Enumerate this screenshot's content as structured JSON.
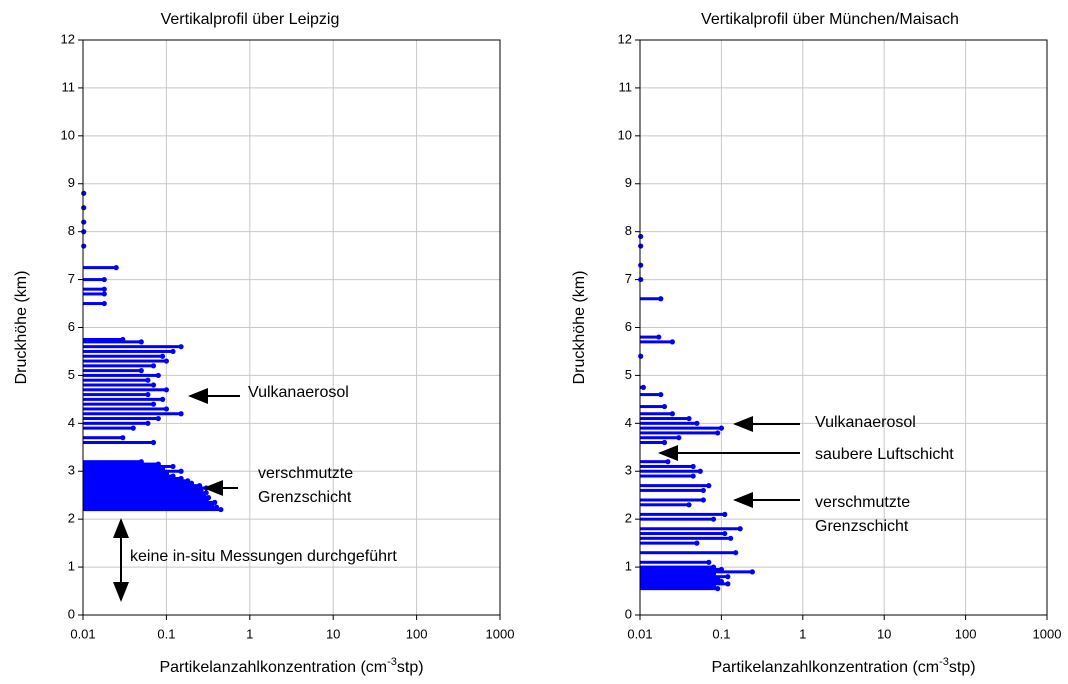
{
  "chart_data": [
    {
      "type": "hbar",
      "title": "Vertikalprofil über Leipzig",
      "xlabel": [
        "Partikelanzahlkonzentration (cm",
        "-3",
        "stp)"
      ],
      "ylabel": "Druckhöhe (km)",
      "xscale": "log",
      "xlim": [
        0.01,
        1000
      ],
      "xticks": [
        0.01,
        0.1,
        1,
        10,
        100,
        1000
      ],
      "ylim": [
        0,
        12
      ],
      "yticks": [
        0,
        1,
        2,
        3,
        4,
        5,
        6,
        7,
        8,
        9,
        10,
        11,
        12
      ],
      "grid": true,
      "color": "#0000ff",
      "altitude": [
        2.2,
        2.25,
        2.3,
        2.35,
        2.4,
        2.45,
        2.5,
        2.55,
        2.6,
        2.65,
        2.7,
        2.75,
        2.8,
        2.85,
        2.9,
        2.95,
        3.0,
        3.05,
        3.1,
        3.15,
        3.2,
        3.6,
        3.7,
        3.9,
        4.0,
        4.1,
        4.2,
        4.3,
        4.4,
        4.5,
        4.6,
        4.7,
        4.8,
        4.9,
        5.0,
        5.1,
        5.2,
        5.3,
        5.4,
        5.5,
        5.6,
        5.7,
        5.75,
        6.5,
        6.7,
        6.8,
        7.0,
        7.25,
        7.7,
        8.0,
        8.2,
        8.5,
        8.8
      ],
      "values": [
        0.45,
        0.4,
        0.35,
        0.38,
        0.3,
        0.32,
        0.28,
        0.3,
        0.26,
        0.3,
        0.25,
        0.2,
        0.18,
        0.15,
        0.12,
        0.1,
        0.15,
        0.09,
        0.12,
        0.08,
        0.05,
        0.07,
        0.03,
        0.04,
        0.06,
        0.08,
        0.15,
        0.1,
        0.07,
        0.09,
        0.06,
        0.1,
        0.07,
        0.06,
        0.08,
        0.05,
        0.07,
        0.1,
        0.09,
        0.12,
        0.15,
        0.05,
        0.03,
        0.018,
        0.018,
        0.018,
        0.018,
        0.025,
        0.0102,
        0.0102,
        0.0102,
        0.0102,
        0.0102
      ],
      "annotations": [
        [
          "Vulkanaerosol"
        ],
        [
          "verschmutzte",
          "Grenzschicht"
        ],
        [
          "keine in-situ Messungen durchgeführt"
        ]
      ]
    },
    {
      "type": "hbar",
      "title": "Vertikalprofil über München/Maisach",
      "xlabel": [
        "Partikelanzahlkonzentration (cm",
        "-3",
        "stp)"
      ],
      "ylabel": "Druckhöhe (km)",
      "xscale": "log",
      "xlim": [
        0.01,
        1000
      ],
      "xticks": [
        0.01,
        0.1,
        1,
        10,
        100,
        1000
      ],
      "ylim": [
        0,
        12
      ],
      "yticks": [
        0,
        1,
        2,
        3,
        4,
        5,
        6,
        7,
        8,
        9,
        10,
        11,
        12
      ],
      "grid": true,
      "color": "#0000ff",
      "altitude": [
        0.55,
        0.6,
        0.65,
        0.7,
        0.75,
        0.8,
        0.85,
        0.9,
        0.95,
        1.0,
        1.1,
        1.3,
        1.5,
        1.6,
        1.7,
        1.8,
        2.0,
        2.1,
        2.3,
        2.4,
        2.6,
        2.7,
        2.9,
        3.0,
        3.1,
        3.2,
        3.6,
        3.7,
        3.8,
        3.9,
        4.0,
        4.1,
        4.2,
        4.35,
        4.6,
        4.75,
        5.4,
        5.7,
        5.8,
        6.6,
        7.0,
        7.3,
        7.7,
        7.9
      ],
      "values": [
        0.09,
        0.08,
        0.12,
        0.1,
        0.09,
        0.12,
        0.08,
        0.24,
        0.1,
        0.08,
        0.07,
        0.15,
        0.05,
        0.13,
        0.11,
        0.17,
        0.08,
        0.11,
        0.04,
        0.06,
        0.06,
        0.07,
        0.045,
        0.055,
        0.045,
        0.022,
        0.02,
        0.03,
        0.09,
        0.1,
        0.05,
        0.04,
        0.025,
        0.02,
        0.018,
        0.011,
        0.0102,
        0.025,
        0.017,
        0.018,
        0.0102,
        0.0102,
        0.0102,
        0.0102
      ],
      "annotations": [
        [
          "Vulkanaerosol"
        ],
        [
          "saubere Luftschicht"
        ],
        [
          "verschmutzte",
          "Grenzschicht"
        ]
      ]
    }
  ]
}
